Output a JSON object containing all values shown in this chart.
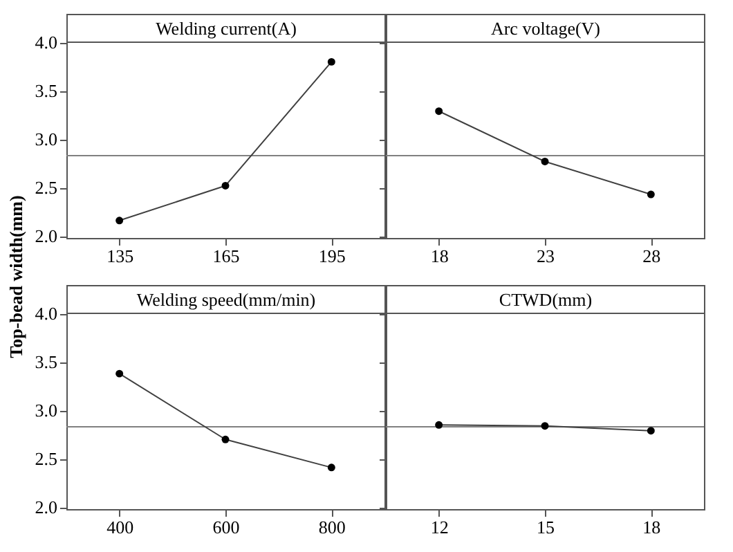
{
  "chart_data": [
    {
      "type": "line",
      "title": "Welding current(A)",
      "ylabel": "Top-bead width(mm)",
      "categories": [
        "135",
        "165",
        "195"
      ],
      "series": [
        {
          "color": "#404040",
          "values": [
            2.16,
            2.52,
            3.8
          ]
        }
      ],
      "ylim": [
        1.98,
        4.01
      ],
      "yticks": [
        {
          "value": 2,
          "label": "2.0"
        },
        2.5,
        {
          "value": 3,
          "label": "3.0"
        },
        3.5,
        {
          "value": 4,
          "label": "4.0"
        }
      ],
      "marker": "circle",
      "ref_lines": [
        {
          "axis": "y",
          "value": 2.83,
          "color": "#808080"
        }
      ]
    },
    {
      "type": "line",
      "title": "Arc voltage(V)",
      "categories": [
        "18",
        "23",
        "28"
      ],
      "series": [
        {
          "color": "#404040",
          "values": [
            3.29,
            2.77,
            2.43
          ]
        }
      ],
      "ylim": [
        1.98,
        4.01
      ],
      "yticks": [
        2,
        2.5,
        3,
        3.5,
        4
      ],
      "tick_labels": "x",
      "marker": "circle",
      "ref_lines": [
        {
          "axis": "y",
          "value": 2.83,
          "color": "#808080"
        }
      ]
    },
    {
      "type": "line",
      "title": "Welding speed(mm/min)",
      "categories": [
        "400",
        "600",
        "800"
      ],
      "series": [
        {
          "color": "#404040",
          "values": [
            3.38,
            2.7,
            2.41
          ]
        }
      ],
      "ylim": [
        1.98,
        4.01
      ],
      "yticks": [
        {
          "value": 2,
          "label": "2.0"
        },
        2.5,
        {
          "value": 3,
          "label": "3.0"
        },
        3.5,
        {
          "value": 4,
          "label": "4.0"
        }
      ],
      "marker": "circle",
      "ref_lines": [
        {
          "axis": "y",
          "value": 2.83,
          "color": "#808080"
        }
      ]
    },
    {
      "type": "line",
      "title": "CTWD(mm)",
      "categories": [
        "12",
        "15",
        "18"
      ],
      "series": [
        {
          "color": "#404040",
          "values": [
            2.85,
            2.84,
            2.79
          ]
        }
      ],
      "ylim": [
        1.98,
        4.01
      ],
      "yticks": [
        2,
        2.5,
        3,
        3.5,
        4
      ],
      "tick_labels": "x",
      "marker": "circle",
      "ref_lines": [
        {
          "axis": "y",
          "value": 2.83,
          "color": "#808080"
        }
      ]
    }
  ]
}
